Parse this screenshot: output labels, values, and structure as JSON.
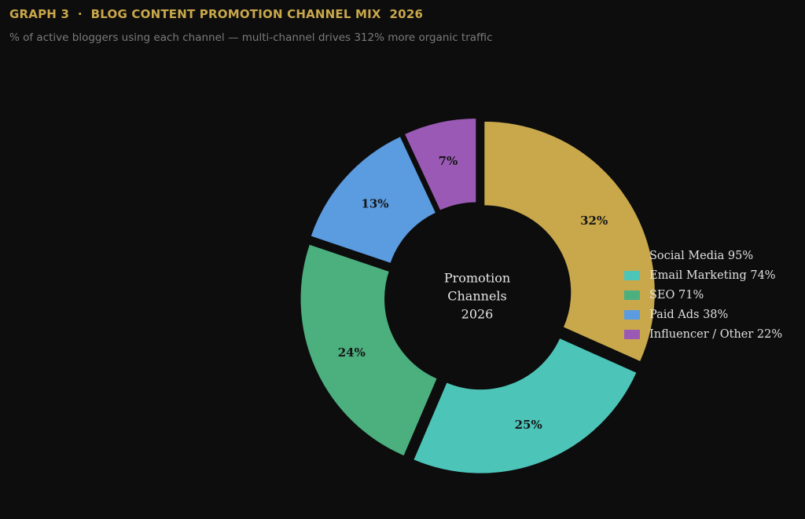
{
  "header": {
    "title": "GRAPH 3  ·  BLOG CONTENT PROMOTION CHANNEL MIX  2026",
    "subtitle": "% of active bloggers using each channel — multi-channel drives 312% more organic traffic",
    "title_color": "#c9a84c"
  },
  "chart_data": {
    "type": "pie",
    "donut": true,
    "center_label": [
      "Promotion",
      "Channels",
      "2026"
    ],
    "categories": [
      "Social Media",
      "Email Marketing",
      "SEO",
      "Paid Ads",
      "Influencer / Other"
    ],
    "values": [
      32,
      25,
      24,
      13,
      7
    ],
    "slice_labels": [
      "32%",
      "25%",
      "24%",
      "13%",
      "7%"
    ],
    "legend_entries": [
      "Social Media  95%",
      "Email Marketing  74%",
      "SEO  71%",
      "Paid Ads  38%",
      "Influencer / Other  22%"
    ],
    "colors": [
      "#c9a84c",
      "#4dc4b8",
      "#4caf7e",
      "#5b9be0",
      "#9b59b6"
    ],
    "legend_position": "right",
    "start_angle": "top",
    "direction": "clockwise"
  }
}
